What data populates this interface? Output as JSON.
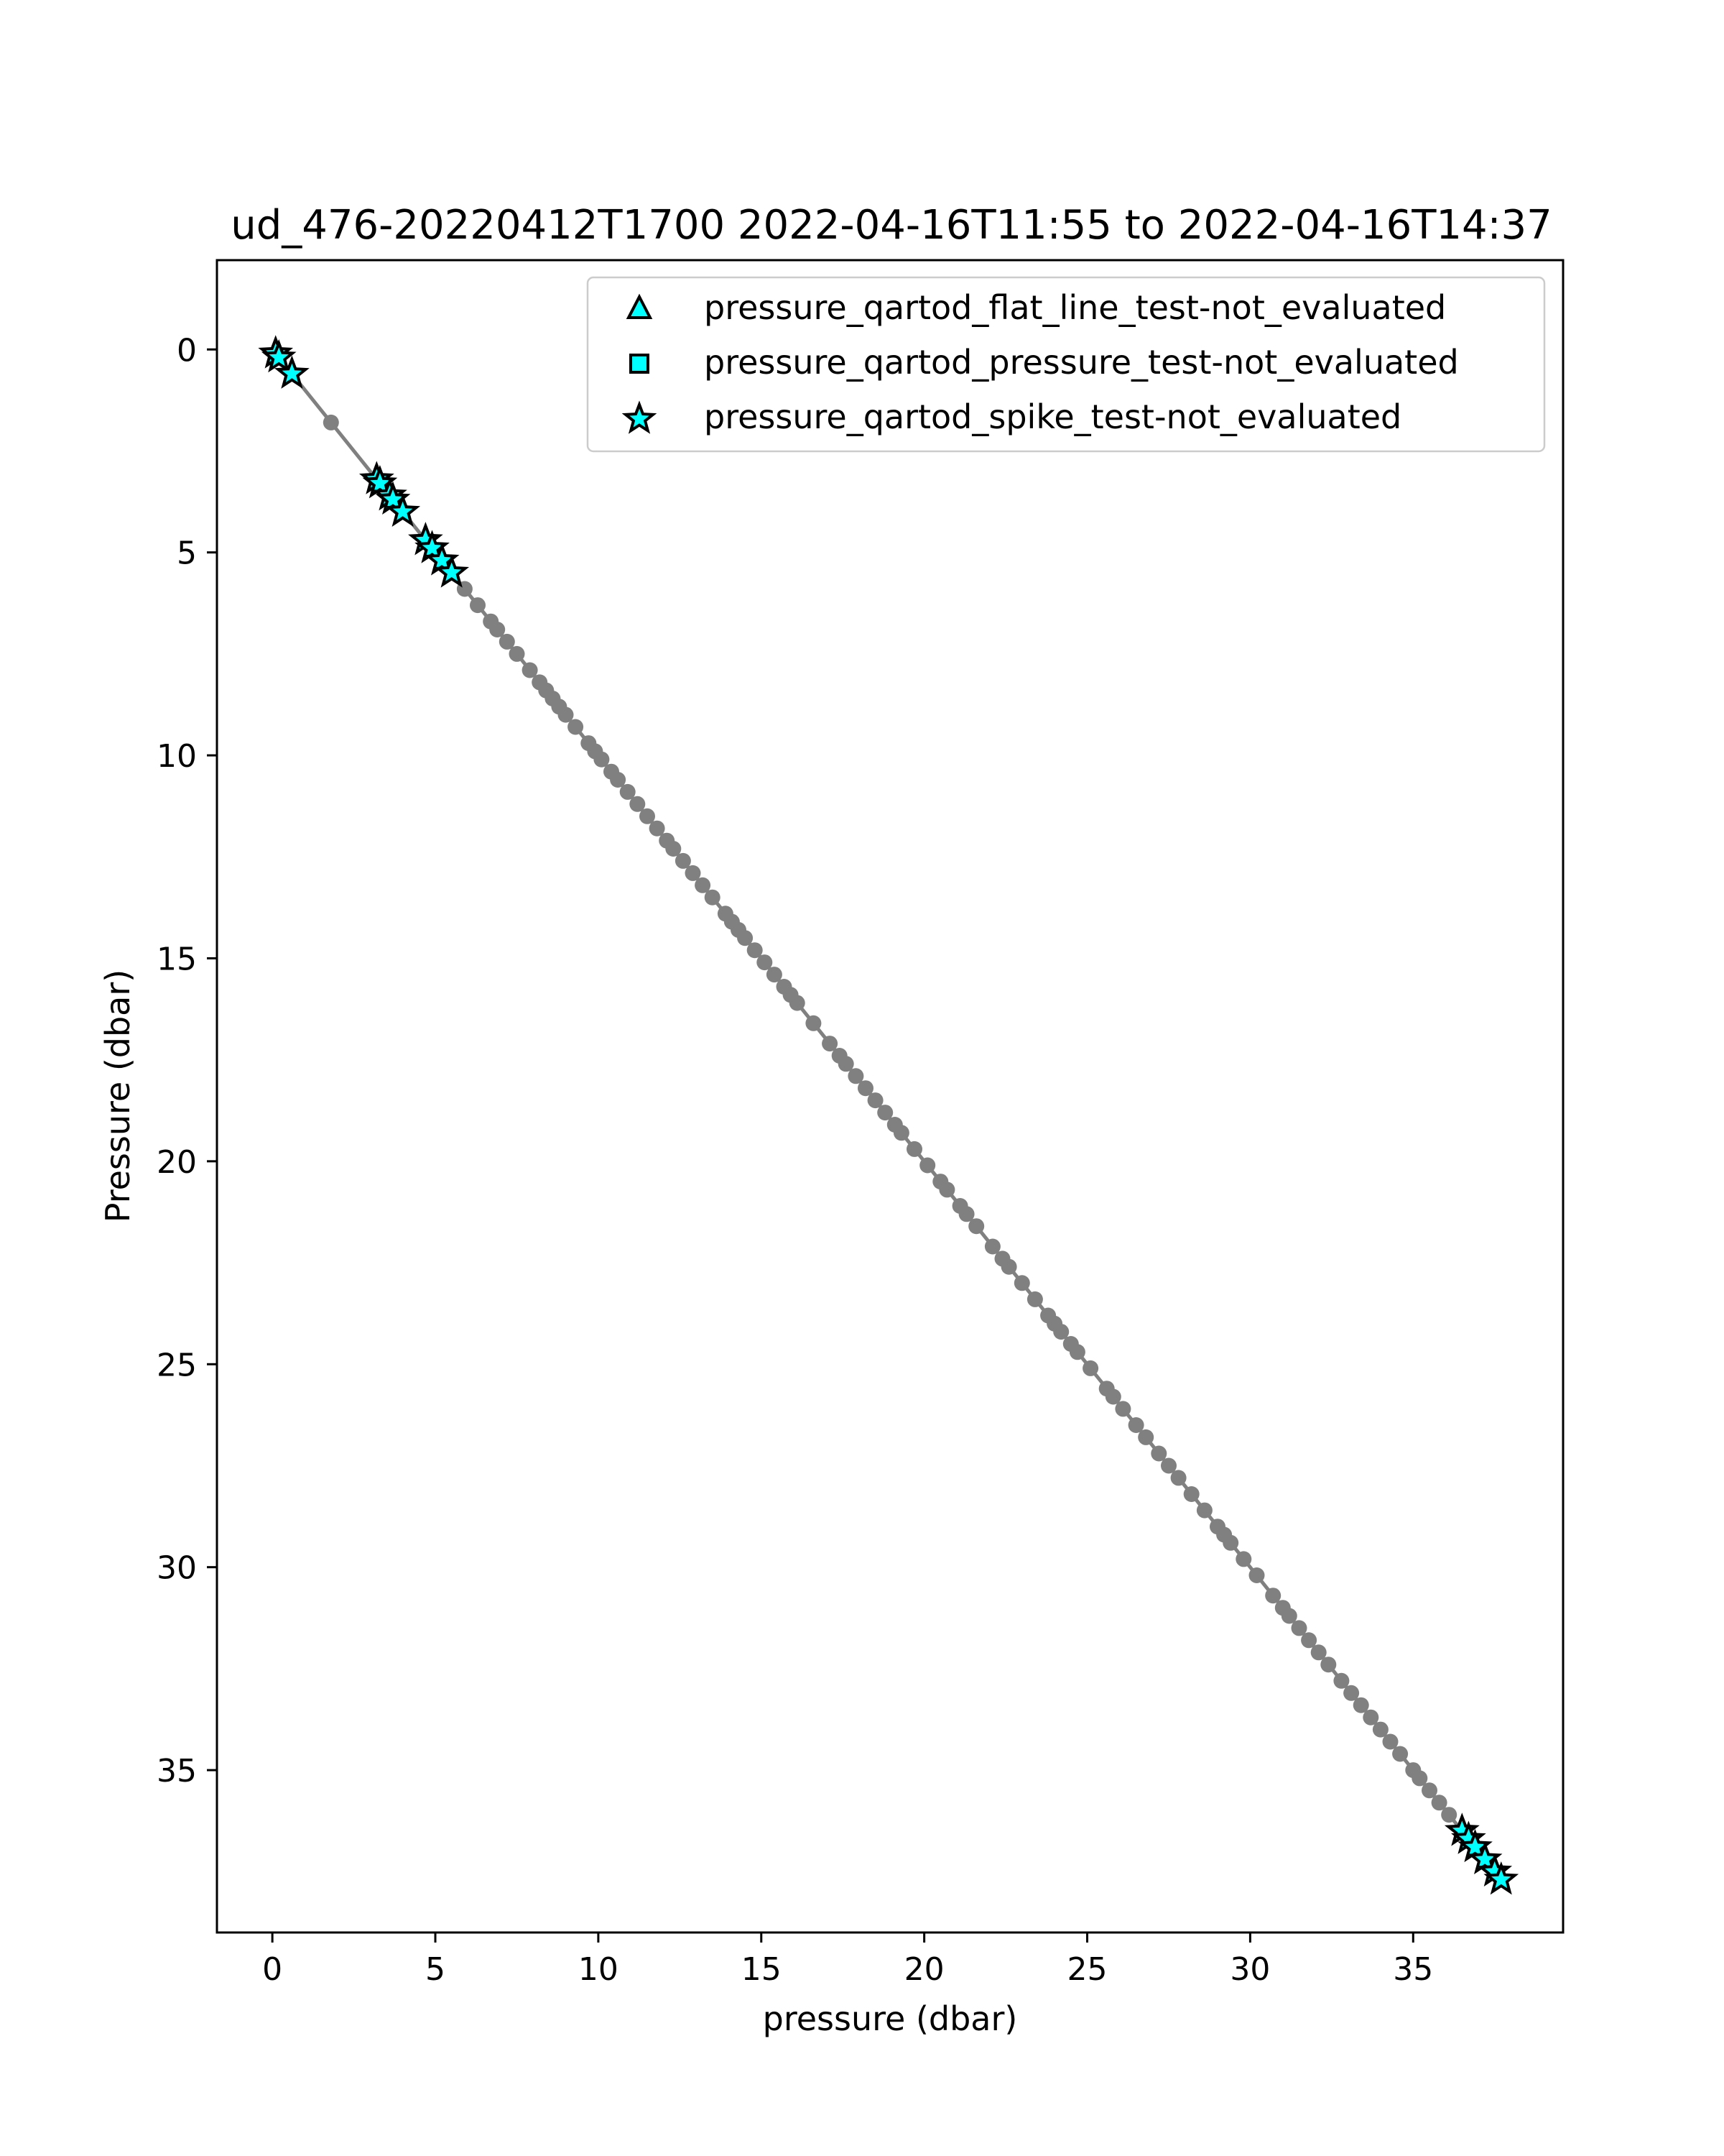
{
  "chart_data": {
    "type": "scatter",
    "title": "ud_476-20220412T1700 2022-04-16T11:55 to 2022-04-16T14:37",
    "xlabel": "pressure (dbar)",
    "ylabel": "Pressure (dbar)",
    "xlim": [
      -1.7,
      39.6
    ],
    "ylim": [
      39.0,
      -2.2
    ],
    "y_inverted": true,
    "x_ticks": [
      0,
      5,
      10,
      15,
      20,
      25,
      30,
      35
    ],
    "y_ticks": [
      0,
      5,
      10,
      15,
      20,
      25,
      30,
      35
    ],
    "grid": false,
    "legend_position": "top-right",
    "colors": {
      "line": "#808080",
      "points": "#808080",
      "flag_fill": "#00ffff",
      "flag_edge": "#000000",
      "axes": "#000000"
    },
    "series": [
      {
        "kind": "line",
        "x": [
          0.1,
          37.7
        ],
        "y": [
          0.1,
          37.7
        ]
      },
      {
        "kind": "points",
        "x": [
          0.1,
          0.2,
          0.6,
          1.8,
          3.2,
          3.3,
          3.6,
          3.7,
          4.0,
          4.7,
          4.9,
          5.2,
          5.5,
          5.9,
          6.3,
          6.7,
          6.9,
          7.2,
          7.5,
          7.9,
          8.2,
          8.4,
          8.6,
          8.8,
          9.0,
          9.3,
          9.7,
          9.9,
          10.1,
          10.4,
          10.6,
          10.9,
          11.2,
          11.5,
          11.8,
          12.1,
          12.3,
          12.6,
          12.9,
          13.2,
          13.5,
          13.9,
          14.1,
          14.3,
          14.5,
          14.8,
          15.1,
          15.4,
          15.7,
          15.9,
          16.1,
          16.6,
          17.1,
          17.4,
          17.6,
          17.9,
          18.2,
          18.5,
          18.8,
          19.1,
          19.3,
          19.7,
          20.1,
          20.5,
          20.7,
          21.1,
          21.3,
          21.6,
          22.1,
          22.4,
          22.6,
          23.0,
          23.4,
          23.8,
          24.0,
          24.2,
          24.5,
          24.7,
          25.1,
          25.6,
          25.8,
          26.1,
          26.5,
          26.8,
          27.2,
          27.5,
          27.8,
          28.2,
          28.6,
          29.0,
          29.2,
          29.4,
          29.8,
          30.2,
          30.7,
          31.0,
          31.2,
          31.5,
          31.8,
          32.1,
          32.4,
          32.8,
          33.1,
          33.4,
          33.7,
          34.0,
          34.3,
          34.6,
          35.0,
          35.2,
          35.5,
          35.8,
          36.1,
          36.5,
          36.9,
          37.2,
          37.5
        ],
        "y": [
          0.1,
          0.2,
          0.6,
          1.8,
          3.2,
          3.3,
          3.6,
          3.7,
          4.0,
          4.7,
          4.9,
          5.2,
          5.5,
          5.9,
          6.3,
          6.7,
          6.9,
          7.2,
          7.5,
          7.9,
          8.2,
          8.4,
          8.6,
          8.8,
          9.0,
          9.3,
          9.7,
          9.9,
          10.1,
          10.4,
          10.6,
          10.9,
          11.2,
          11.5,
          11.8,
          12.1,
          12.3,
          12.6,
          12.9,
          13.2,
          13.5,
          13.9,
          14.1,
          14.3,
          14.5,
          14.8,
          15.1,
          15.4,
          15.7,
          15.9,
          16.1,
          16.6,
          17.1,
          17.4,
          17.6,
          17.9,
          18.2,
          18.5,
          18.8,
          19.1,
          19.3,
          19.7,
          20.1,
          20.5,
          20.7,
          21.1,
          21.3,
          21.6,
          22.1,
          22.4,
          22.6,
          23.0,
          23.4,
          23.8,
          24.0,
          24.2,
          24.5,
          24.7,
          25.1,
          25.6,
          25.8,
          26.1,
          26.5,
          26.8,
          27.2,
          27.5,
          27.8,
          28.2,
          28.6,
          29.0,
          29.2,
          29.4,
          29.8,
          30.2,
          30.7,
          31.0,
          31.2,
          31.5,
          31.8,
          32.1,
          32.4,
          32.8,
          33.1,
          33.4,
          33.7,
          34.0,
          34.3,
          34.6,
          35.0,
          35.2,
          35.5,
          35.8,
          36.1,
          36.5,
          36.9,
          37.2,
          37.5
        ]
      },
      {
        "kind": "flag",
        "name": "pressure_qartod_flat_line_test-not_evaluated",
        "marker": "triangle",
        "x": [],
        "y": []
      },
      {
        "kind": "flag",
        "name": "pressure_qartod_pressure_test-not_evaluated",
        "marker": "square",
        "x": [],
        "y": []
      },
      {
        "kind": "flag",
        "name": "pressure_qartod_spike_test-not_evaluated",
        "marker": "star",
        "x": [
          0.1,
          0.2,
          0.6,
          3.2,
          3.3,
          3.6,
          3.7,
          4.0,
          4.7,
          4.9,
          5.2,
          5.5,
          36.5,
          36.7,
          36.9,
          37.2,
          37.5,
          37.7
        ],
        "y": [
          0.1,
          0.2,
          0.6,
          3.2,
          3.3,
          3.6,
          3.7,
          4.0,
          4.7,
          4.9,
          5.2,
          5.5,
          36.5,
          36.7,
          36.9,
          37.2,
          37.5,
          37.7
        ]
      }
    ]
  }
}
